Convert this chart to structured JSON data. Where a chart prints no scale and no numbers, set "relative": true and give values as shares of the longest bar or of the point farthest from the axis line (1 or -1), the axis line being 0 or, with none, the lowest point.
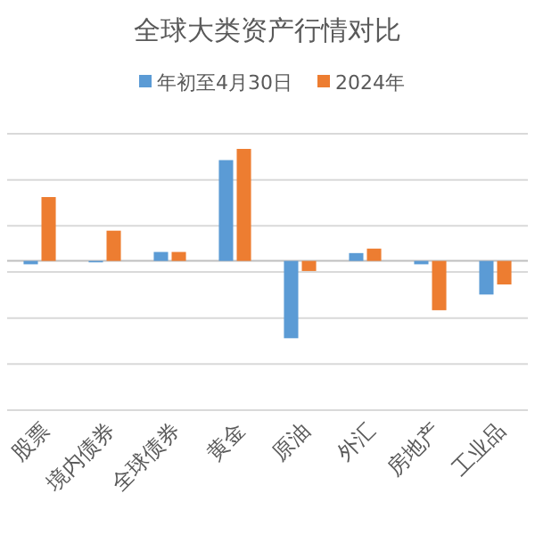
{
  "chart_data": {
    "type": "bar",
    "title": "全球大类资产行情对比",
    "relative": true,
    "grid": "y",
    "legend": "top",
    "categories": [
      "股票",
      "境内债券",
      "全球债券",
      "黄金",
      "原油",
      "外汇",
      "房地产",
      "工业品"
    ],
    "series": [
      {
        "name": "年初至4月30日",
        "color": "#5b9bd5",
        "values": [
          -0.03,
          -0.01,
          0.08,
          0.9,
          -0.69,
          0.07,
          -0.03,
          -0.3
        ]
      },
      {
        "name": "2024年",
        "color": "#ed7d31",
        "values": [
          0.57,
          0.27,
          0.08,
          1,
          -0.09,
          0.11,
          -0.44,
          -0.21
        ]
      }
    ]
  }
}
